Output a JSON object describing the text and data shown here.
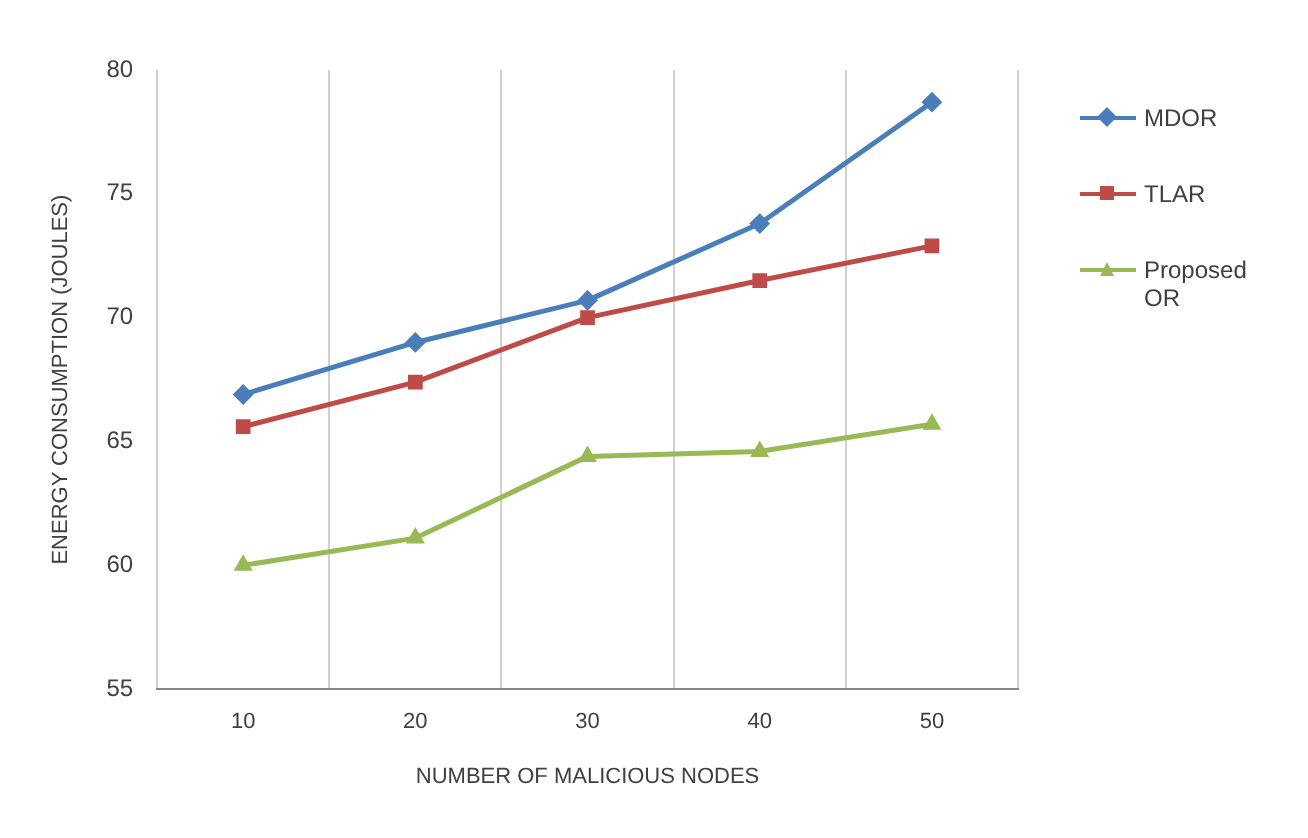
{
  "chart_data": {
    "type": "line",
    "xlabel": "NUMBER OF MALICIOUS NODES",
    "ylabel": "ENERGY CONSUMPTION (JOULES)",
    "categories": [
      "10",
      "20",
      "30",
      "40",
      "50"
    ],
    "series": [
      {
        "name": "MDOR",
        "color": "#4a7ebb",
        "marker": "diamond",
        "values": [
          66.9,
          69,
          70.7,
          73.8,
          78.7
        ]
      },
      {
        "name": "TLAR",
        "color": "#be4b48",
        "marker": "square",
        "values": [
          65.6,
          67.4,
          70,
          71.5,
          72.9
        ]
      },
      {
        "name": "Proposed OR",
        "color": "#98b954",
        "marker": "triangle",
        "values": [
          60,
          61.1,
          64.4,
          64.6,
          65.7
        ]
      }
    ],
    "ylim": [
      55,
      80
    ],
    "yticks": [
      55,
      60,
      65,
      70,
      75,
      80
    ],
    "grid": "x",
    "legend": "right",
    "line_style": "solid"
  }
}
